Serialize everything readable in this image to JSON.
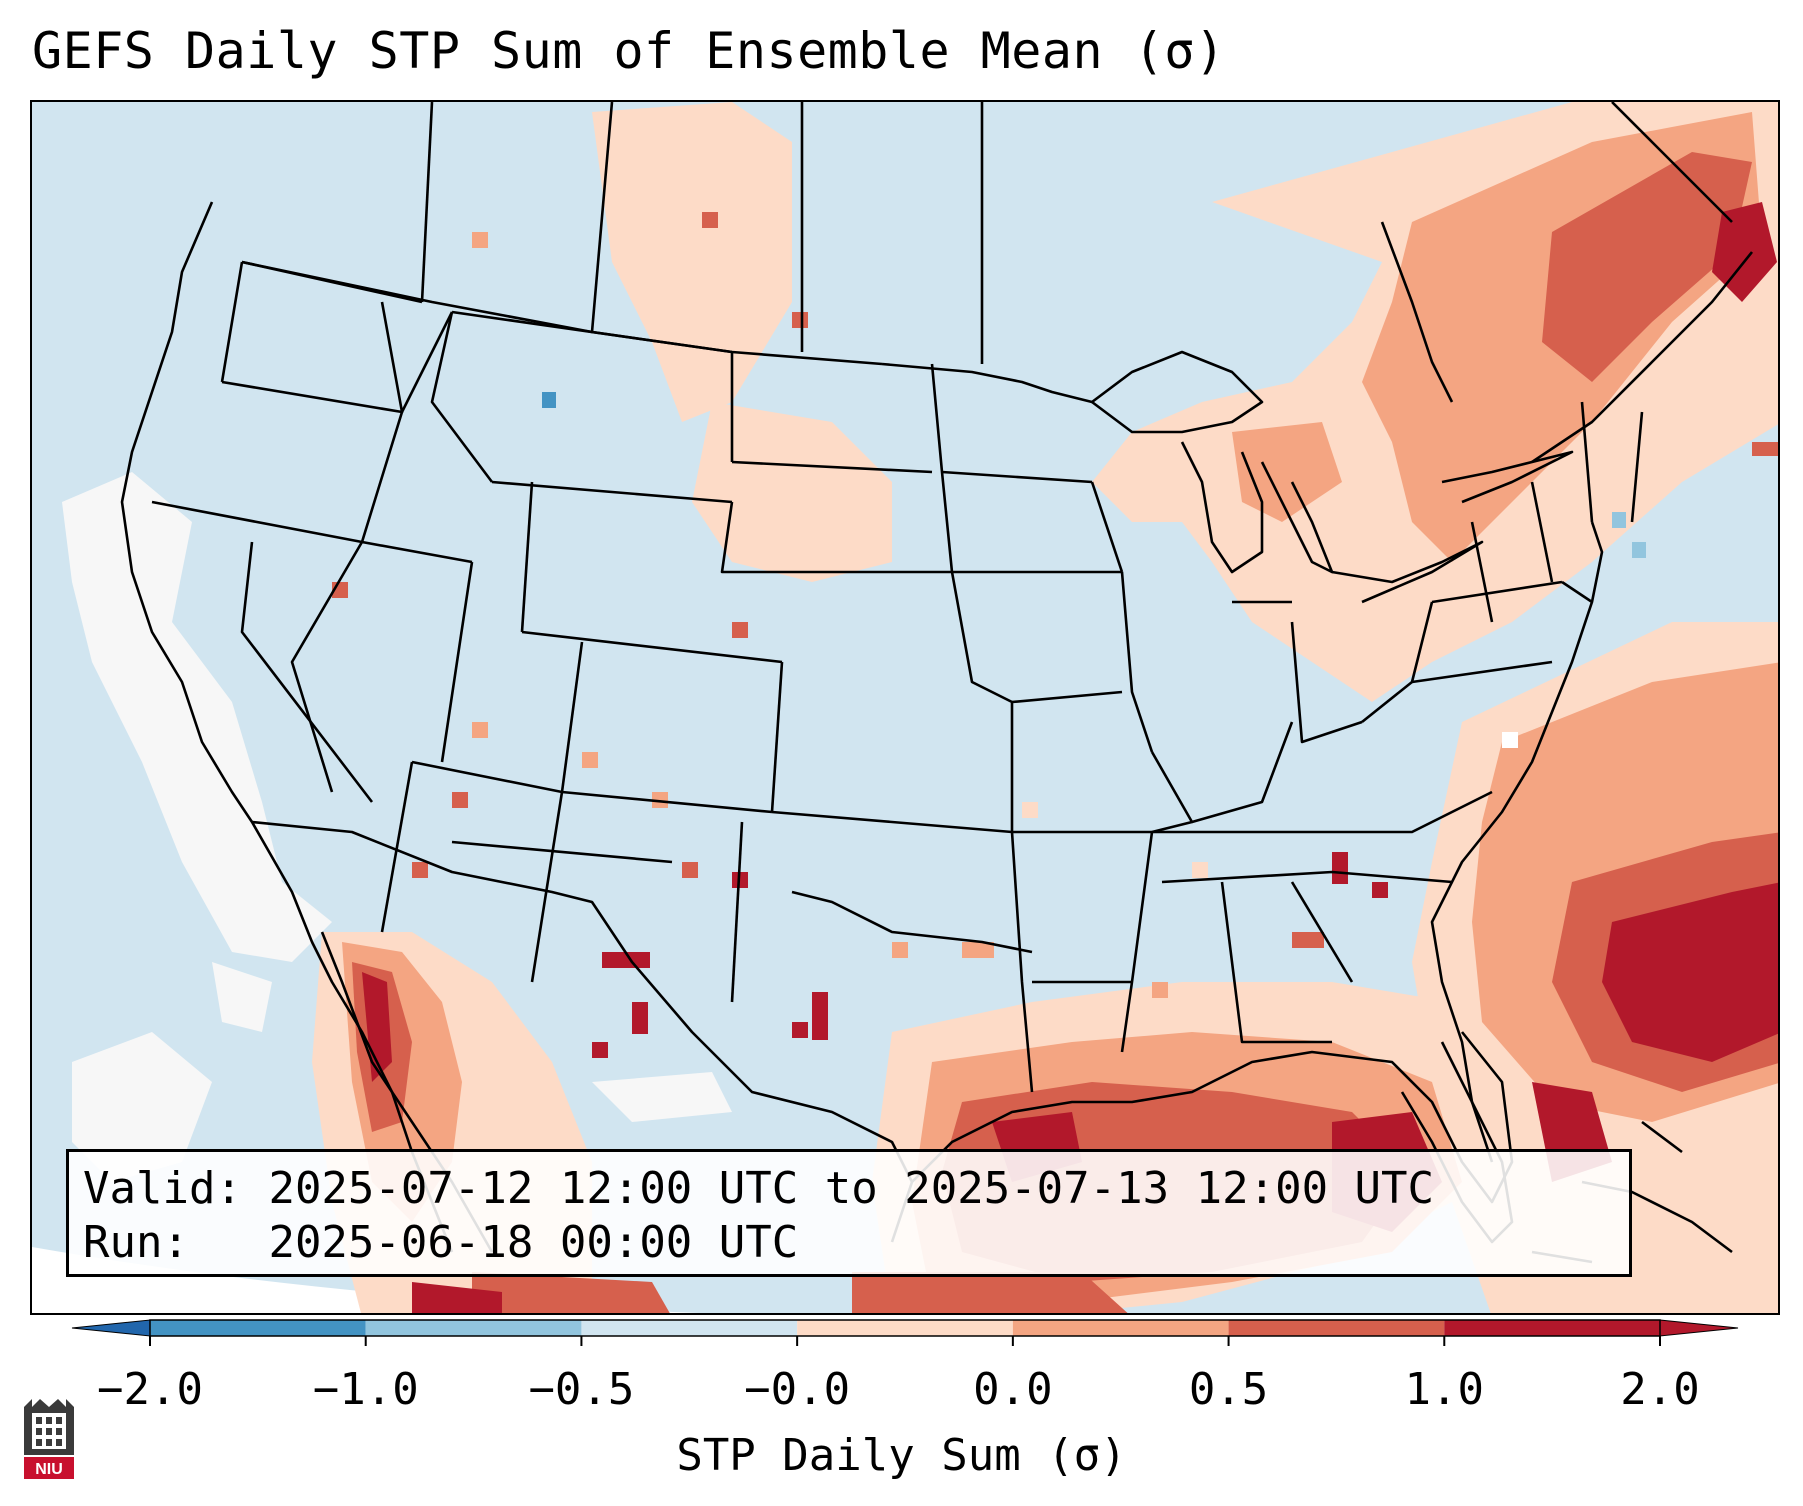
{
  "title": "GEFS Daily STP Sum of Ensemble Mean (σ)",
  "info": {
    "valid_label": "Valid:",
    "valid_value": "2025-07-12 12:00 UTC to 2025-07-13 12:00 UTC",
    "run_label": "Run:",
    "run_value": "2025-06-18 00:00 UTC"
  },
  "colorbar": {
    "label": "STP Daily Sum (σ)",
    "ticks": [
      "−2.0",
      "−1.0",
      "−0.5",
      "−0.0",
      "0.0",
      "0.5",
      "1.0",
      "2.0"
    ],
    "colors": [
      "#4393c3",
      "#92c5de",
      "#d1e5f0",
      "#f7f7f7",
      "#fddbc7",
      "#f4a582",
      "#d6604d",
      "#b2182b"
    ],
    "under_color": "#2166ac",
    "over_color": "#b2182b"
  },
  "logo": {
    "icon": "niu-logo-icon",
    "text": "NIU"
  }
}
